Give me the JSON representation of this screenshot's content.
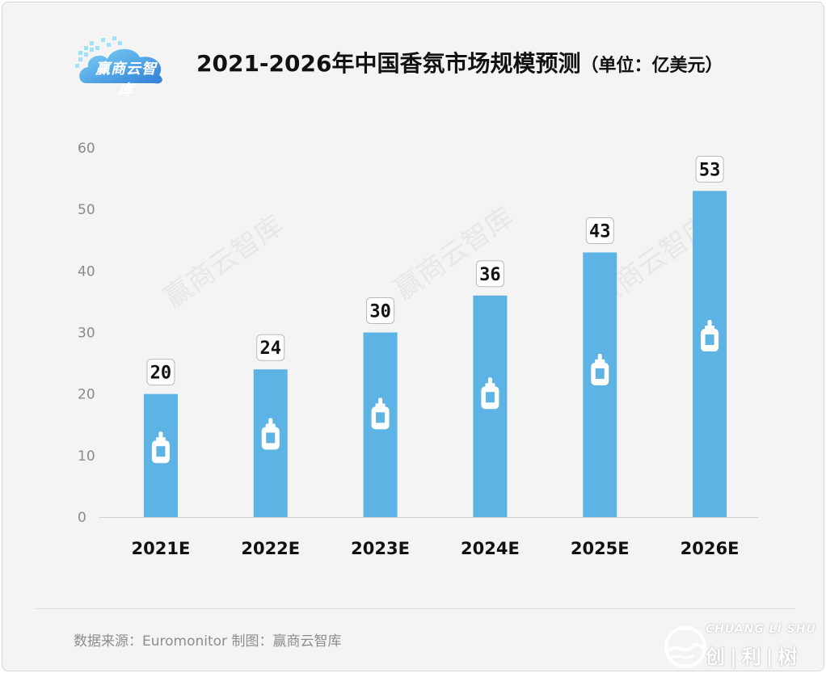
{
  "header": {
    "logo_text": "赢商云智库",
    "title": "2021-2026年中国香氛市场规模预测",
    "title_unit": "（单位：亿美元）"
  },
  "watermark": "赢商云智库",
  "footer": {
    "source": "数据来源：Euromonitor  制图：赢商云智库",
    "brand_en": "CHUANG LI SHU",
    "brand_cn": "创|利|树"
  },
  "colors": {
    "bar": "#5db3e4",
    "axis_text": "#8a8a8a",
    "label_text": "#111111"
  },
  "chart_data": {
    "type": "bar",
    "title": "2021-2026年中国香氛市场规模预测（单位：亿美元）",
    "categories": [
      "2021E",
      "2022E",
      "2023E",
      "2024E",
      "2025E",
      "2026E"
    ],
    "values": [
      20,
      24,
      30,
      36,
      43,
      53
    ],
    "yticks": [
      "0",
      "10",
      "20",
      "30",
      "40",
      "50",
      "60"
    ],
    "ylim": [
      0,
      60
    ],
    "xlabel": "",
    "ylabel": "",
    "grid": false,
    "legend": "none",
    "bar_icon": "perfume-bottle-icon"
  }
}
